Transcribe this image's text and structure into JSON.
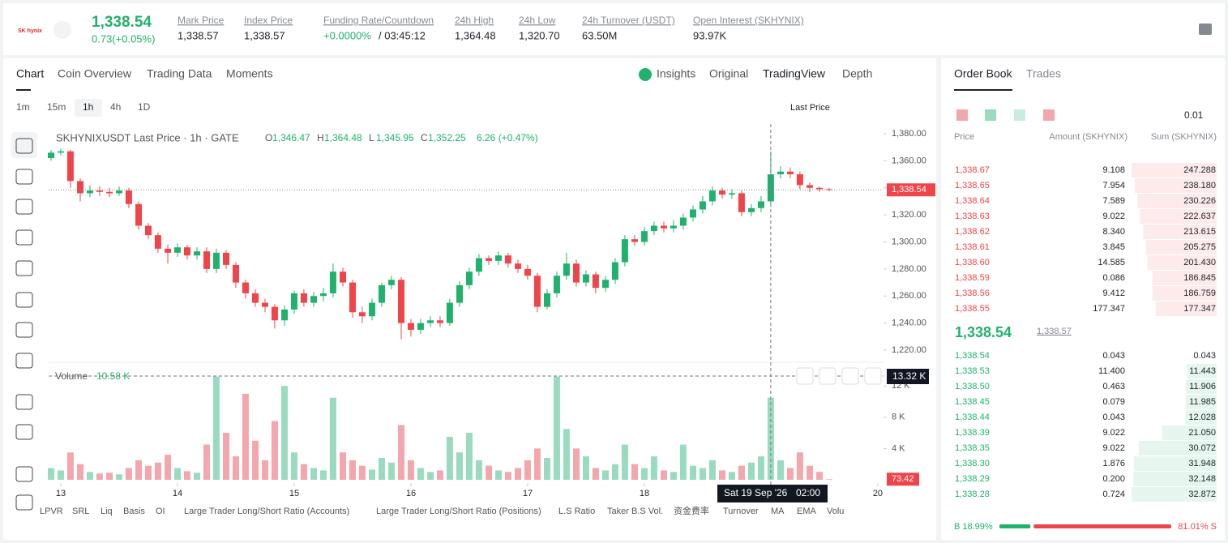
{
  "header": {
    "logo": "SK hynix",
    "last_price": "1,338.54",
    "change": "0.73(+0.05%)",
    "stats": [
      {
        "label": "Mark Price",
        "value": "1,338.57"
      },
      {
        "label": "Index Price",
        "value": "1,338.57"
      },
      {
        "label": "Funding Rate/Countdown",
        "value": "+0.0000%",
        "value2": "/ 03:45:12"
      },
      {
        "label": "24h High",
        "value": "1,364.48"
      },
      {
        "label": "24h Low",
        "value": "1,320.70"
      },
      {
        "label": "24h Turnover (USDT)",
        "value": "63.50M"
      },
      {
        "label": "Open Interest (SKHYNIX)",
        "value": "93.97K"
      }
    ]
  },
  "chart_tabs": [
    "Chart",
    "Coin Overview",
    "Trading Data",
    "Moments"
  ],
  "view_tabs": [
    "Insights",
    "Original",
    "TradingView",
    "Depth"
  ],
  "intervals": [
    "1m",
    "15m",
    "1h",
    "4h",
    "1D"
  ],
  "price_type": "Last Price",
  "indicators": [
    "LPVR",
    "SRL",
    "Liq",
    "Basis",
    "OI",
    "Large Trader Long/Short Ratio (Accounts)",
    "Large Trader Long/Short Ratio (Positions)",
    "L.S Ratio",
    "Taker B.S Vol.",
    "资金费率",
    "Turnover",
    "MA",
    "EMA",
    "Volu"
  ],
  "chart_data": {
    "type": "candlestick",
    "legend": "SKHYNIXUSDT Last Price · 1h · GATE",
    "ohlc": [
      {
        "key": "O",
        "value": "1,346.47"
      },
      {
        "key": "H",
        "value": "1,364.48"
      },
      {
        "key": "L",
        "value": "1,345.95"
      },
      {
        "key": "C",
        "value": "1,352.25"
      }
    ],
    "ohlc_change": "6.26 (+0.47%)",
    "x": [
      12.917,
      13,
      13.083,
      13.167,
      13.25,
      13.333,
      13.417,
      13.5,
      13.583,
      13.667,
      13.75,
      13.833,
      13.917,
      14,
      14.083,
      14.167,
      14.25,
      14.333,
      14.417,
      14.5,
      14.583,
      14.667,
      14.75,
      14.833,
      14.917,
      15,
      15.083,
      15.167,
      15.25,
      15.333,
      15.417,
      15.5,
      15.583,
      15.667,
      15.75,
      15.833,
      15.917,
      16,
      16.083,
      16.167,
      16.25,
      16.333,
      16.417,
      16.5,
      16.583,
      16.667,
      16.75,
      16.833,
      16.917,
      17,
      17.083,
      17.167,
      17.25,
      17.333,
      17.417,
      17.5,
      17.583,
      17.667,
      17.75,
      17.833,
      17.917,
      18,
      18.083,
      18.167,
      18.25,
      18.333,
      18.417,
      18.5,
      18.583,
      18.667,
      18.75,
      18.833,
      18.917,
      19,
      19.083,
      19.167,
      19.25,
      19.333,
      19.417,
      19.5,
      19.583
    ],
    "open": [
      1362,
      1366,
      1367,
      1345,
      1336,
      1338,
      1337,
      1336,
      1338,
      1328,
      1312,
      1305,
      1295,
      1292,
      1296,
      1290,
      1293,
      1280,
      1292,
      1283,
      1270,
      1262,
      1255,
      1252,
      1242,
      1250,
      1262,
      1255,
      1260,
      1262,
      1278,
      1270,
      1248,
      1245,
      1255,
      1268,
      1272,
      1240,
      1235,
      1240,
      1242,
      1240,
      1255,
      1268,
      1278,
      1288,
      1286,
      1290,
      1284,
      1280,
      1275,
      1252,
      1262,
      1275,
      1284,
      1270,
      1276,
      1266,
      1272,
      1285,
      1302,
      1300,
      1308,
      1312,
      1310,
      1312,
      1318,
      1324,
      1330,
      1338,
      1335,
      1336,
      1322,
      1325,
      1330,
      1350,
      1352,
      1350,
      1342,
      1340,
      1339
    ],
    "high": [
      1368,
      1369,
      1368,
      1347,
      1342,
      1341,
      1340,
      1341,
      1340,
      1330,
      1314,
      1307,
      1298,
      1299,
      1298,
      1296,
      1296,
      1295,
      1294,
      1285,
      1272,
      1265,
      1258,
      1254,
      1253,
      1264,
      1265,
      1263,
      1266,
      1284,
      1281,
      1272,
      1252,
      1258,
      1270,
      1275,
      1274,
      1243,
      1243,
      1245,
      1245,
      1258,
      1271,
      1281,
      1291,
      1290,
      1293,
      1292,
      1287,
      1283,
      1277,
      1265,
      1278,
      1292,
      1287,
      1279,
      1278,
      1275,
      1288,
      1305,
      1305,
      1311,
      1315,
      1315,
      1316,
      1321,
      1327,
      1334,
      1341,
      1340,
      1339,
      1338,
      1328,
      1334,
      1367,
      1356,
      1355,
      1352,
      1344,
      1341,
      1340
    ],
    "low": [
      1360,
      1364,
      1340,
      1330,
      1333,
      1334,
      1333,
      1334,
      1325,
      1309,
      1302,
      1292,
      1284,
      1289,
      1287,
      1287,
      1277,
      1277,
      1280,
      1266,
      1258,
      1252,
      1248,
      1236,
      1238,
      1247,
      1252,
      1252,
      1256,
      1259,
      1267,
      1244,
      1240,
      1242,
      1252,
      1265,
      1228,
      1230,
      1232,
      1237,
      1237,
      1238,
      1252,
      1265,
      1275,
      1283,
      1283,
      1281,
      1277,
      1272,
      1248,
      1250,
      1259,
      1272,
      1267,
      1267,
      1262,
      1263,
      1269,
      1282,
      1297,
      1297,
      1305,
      1307,
      1307,
      1309,
      1315,
      1321,
      1327,
      1332,
      1332,
      1319,
      1319,
      1322,
      1327,
      1347,
      1347,
      1339,
      1337,
      1337,
      1337.5
    ],
    "close": [
      1366,
      1367,
      1345,
      1336,
      1338,
      1337,
      1336,
      1338,
      1328,
      1312,
      1305,
      1295,
      1292,
      1296,
      1290,
      1293,
      1280,
      1292,
      1283,
      1270,
      1262,
      1255,
      1252,
      1242,
      1250,
      1262,
      1255,
      1260,
      1262,
      1278,
      1270,
      1248,
      1245,
      1255,
      1268,
      1272,
      1240,
      1235,
      1240,
      1242,
      1240,
      1255,
      1268,
      1278,
      1288,
      1286,
      1290,
      1284,
      1280,
      1275,
      1252,
      1262,
      1275,
      1284,
      1270,
      1276,
      1266,
      1272,
      1285,
      1302,
      1300,
      1308,
      1312,
      1310,
      1312,
      1318,
      1324,
      1330,
      1338,
      1335,
      1336,
      1322,
      1325,
      1330,
      1350,
      1352,
      1350,
      1342,
      1340,
      1339,
      1338.5
    ],
    "volume": [
      1500,
      1200,
      3500,
      2000,
      1000,
      800,
      900,
      700,
      1500,
      2500,
      1800,
      2200,
      3200,
      1500,
      1100,
      900,
      4500,
      13200,
      6000,
      3000,
      11000,
      5000,
      2500,
      7500,
      12000,
      3500,
      2000,
      1500,
      1200,
      10500,
      3500,
      2500,
      1800,
      1300,
      2800,
      2200,
      7000,
      2500,
      1500,
      1000,
      1200,
      5500,
      3500,
      6000,
      2500,
      1800,
      1200,
      1000,
      1500,
      2500,
      4000,
      2800,
      13200,
      6500,
      4000,
      3000,
      1500,
      1200,
      2000,
      4500,
      2000,
      1500,
      3000,
      1200,
      1000,
      4500,
      1800,
      1500,
      2500,
      1200,
      1000,
      1800,
      2200,
      3000,
      10500,
      2500,
      1500,
      3500,
      1800,
      1000,
      73.42
    ],
    "volume_label": "Volume",
    "volume_value": "10.58 K",
    "xlim": [
      12.896,
      20.049
    ],
    "xticks": [
      13,
      14,
      15,
      16,
      17,
      18,
      20
    ],
    "ylim": [
      1211,
      1387.2
    ],
    "yticks": [
      {
        "value": 1380,
        "label": "1,380.00"
      },
      {
        "value": 1360,
        "label": "1,360.00"
      },
      {
        "value": 1340,
        "label": "1,340.00"
      },
      {
        "value": 1320,
        "label": "1,320.00"
      },
      {
        "value": 1300,
        "label": "1,300.00"
      },
      {
        "value": 1280,
        "label": "1,280.00"
      },
      {
        "value": 1260,
        "label": "1,260.00"
      },
      {
        "value": 1240,
        "label": "1,240.00"
      },
      {
        "value": 1220,
        "label": "1,220.00"
      }
    ],
    "vol_ylim": [
      0,
      14200
    ],
    "vol_ticks": [
      {
        "value": 12000,
        "label": "12 K"
      },
      {
        "value": 8000,
        "label": "8 K"
      },
      {
        "value": 4000,
        "label": "4 K"
      }
    ],
    "price_tag": "1,338.54",
    "volume_tag": "73.42",
    "crosshair_date": "Sat 19 Sep '26",
    "crosshair_time": "02:00",
    "crosshair_volume": "13.32 K"
  },
  "order_book": {
    "tabs": [
      "Order Book",
      "Trades"
    ],
    "precision": "0.01",
    "columns": [
      "Price",
      "Amount (SKHYNIX)",
      "Sum (SKHYNIX)"
    ],
    "asks": [
      [
        "1,338.67",
        "9.108",
        "247.288"
      ],
      [
        "1,338.65",
        "7.954",
        "238.180"
      ],
      [
        "1,338.64",
        "7.589",
        "230.226"
      ],
      [
        "1,338.63",
        "9.022",
        "222.637"
      ],
      [
        "1,338.62",
        "8.340",
        "213.615"
      ],
      [
        "1,338.61",
        "3.845",
        "205.275"
      ],
      [
        "1,338.60",
        "14.585",
        "201.430"
      ],
      [
        "1,338.59",
        "0.086",
        "186.845"
      ],
      [
        "1,338.56",
        "9.412",
        "186.759"
      ],
      [
        "1,338.55",
        "177.347",
        "177.347"
      ]
    ],
    "mid_price": "1,338.54",
    "mark_price": "1,338.57",
    "bids": [
      [
        "1,338.54",
        "0.043",
        "0.043"
      ],
      [
        "1,338.53",
        "11.400",
        "11.443"
      ],
      [
        "1,338.50",
        "0.463",
        "11.906"
      ],
      [
        "1,338.45",
        "0.079",
        "11.985"
      ],
      [
        "1,338.44",
        "0.043",
        "12.028"
      ],
      [
        "1,338.39",
        "9.022",
        "21.050"
      ],
      [
        "1,338.35",
        "9.022",
        "30.072"
      ],
      [
        "1,338.30",
        "1.876",
        "31.948"
      ],
      [
        "1,338.29",
        "0.200",
        "32.148"
      ],
      [
        "1,338.28",
        "0.724",
        "32.872"
      ]
    ],
    "buy": {
      "value": 18.99,
      "label": "B 18.99%"
    },
    "sell": {
      "value": 81.01,
      "label": "81.01% S"
    }
  }
}
